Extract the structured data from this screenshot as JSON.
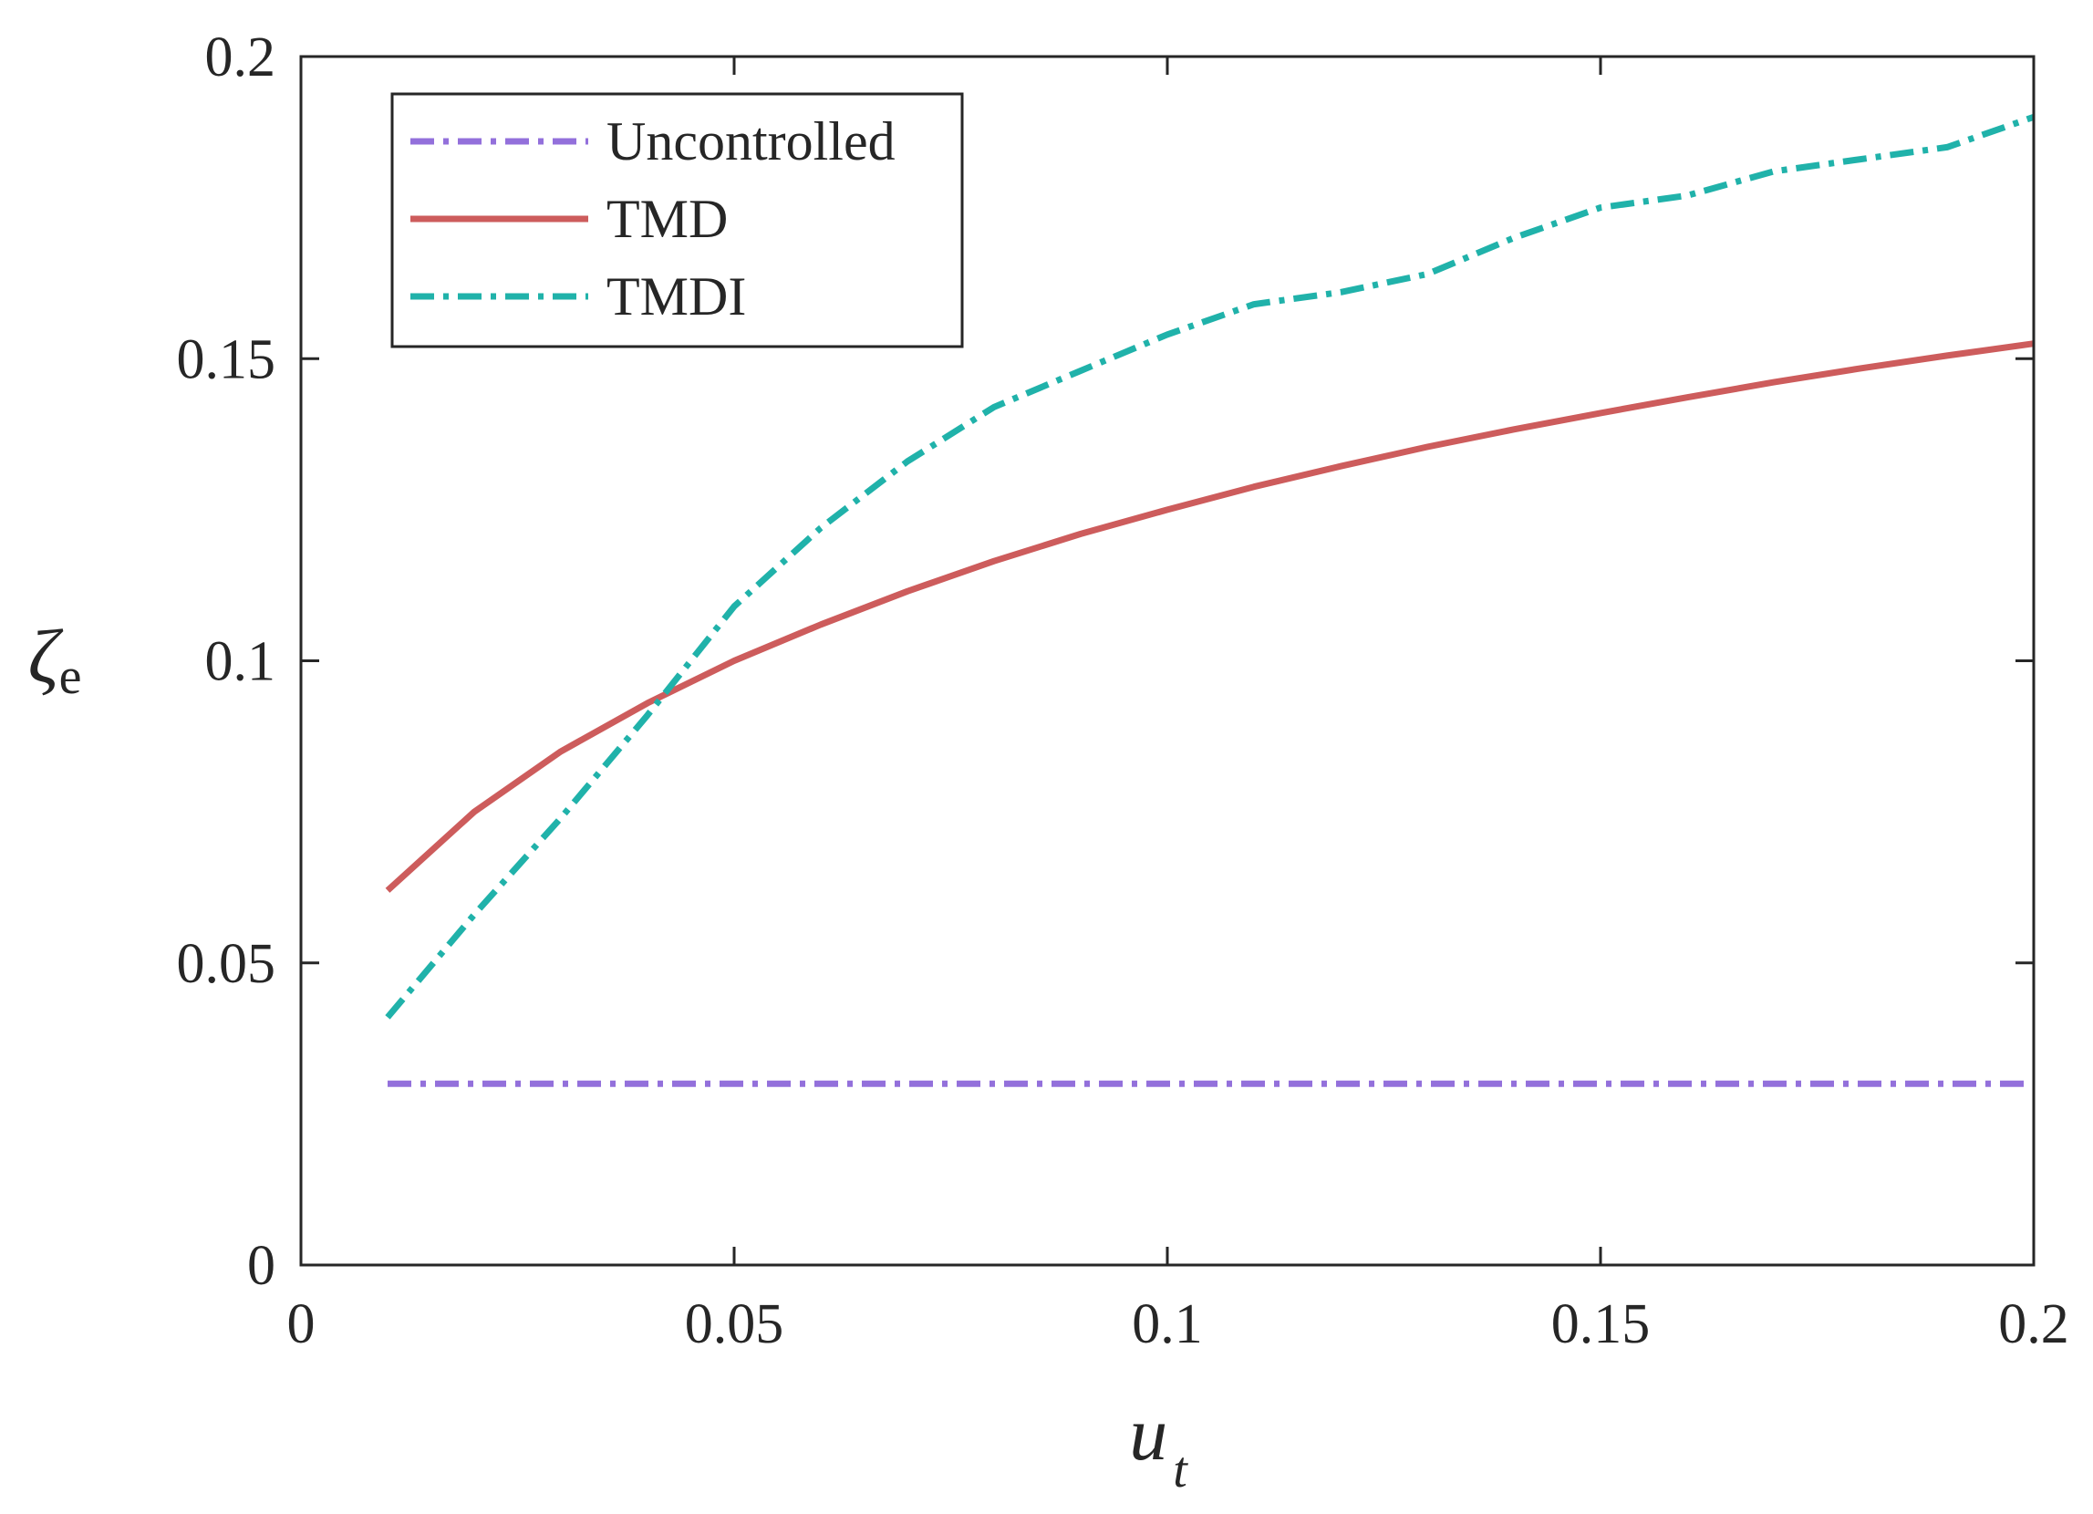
{
  "chart_data": {
    "type": "line",
    "title": "",
    "xlabel": "u",
    "xlabel_sub": "t",
    "ylabel": "ζ",
    "ylabel_sub": "e",
    "xlim": [
      0,
      0.2
    ],
    "ylim": [
      0,
      0.2
    ],
    "xticks": [
      0,
      0.05,
      0.1,
      0.15,
      0.2
    ],
    "xtick_labels": [
      "0",
      "0.05",
      "0.1",
      "0.15",
      "0.2"
    ],
    "yticks": [
      0,
      0.05,
      0.1,
      0.15,
      0.2
    ],
    "ytick_labels": [
      "0",
      "0.05",
      "0.1",
      "0.15",
      "0.2"
    ],
    "grid": false,
    "legend_position": "top-left",
    "x": [
      0.01,
      0.02,
      0.03,
      0.04,
      0.05,
      0.06,
      0.07,
      0.08,
      0.09,
      0.1,
      0.11,
      0.12,
      0.13,
      0.14,
      0.15,
      0.16,
      0.17,
      0.18,
      0.19,
      0.2
    ],
    "series": [
      {
        "name": "Uncontrolled",
        "color": "#9370db",
        "style": "dash-dot",
        "values": [
          0.03,
          0.03,
          0.03,
          0.03,
          0.03,
          0.03,
          0.03,
          0.03,
          0.03,
          0.03,
          0.03,
          0.03,
          0.03,
          0.03,
          0.03,
          0.03,
          0.03,
          0.03,
          0.03,
          0.03
        ]
      },
      {
        "name": "TMD",
        "color": "#cd5c5c",
        "style": "solid",
        "values": [
          0.062,
          0.075,
          0.085,
          0.093,
          0.1,
          0.106,
          0.1115,
          0.1165,
          0.121,
          0.125,
          0.1288,
          0.1322,
          0.1354,
          0.1383,
          0.141,
          0.1436,
          0.1461,
          0.1484,
          0.1505,
          0.1525
        ]
      },
      {
        "name": "TMDI",
        "color": "#20b2aa",
        "style": "dash-dot",
        "values": [
          0.041,
          0.058,
          0.074,
          0.091,
          0.109,
          0.122,
          0.133,
          0.142,
          0.148,
          0.154,
          0.159,
          0.161,
          0.164,
          0.17,
          0.175,
          0.177,
          0.181,
          0.183,
          0.185,
          0.19
        ]
      }
    ]
  }
}
